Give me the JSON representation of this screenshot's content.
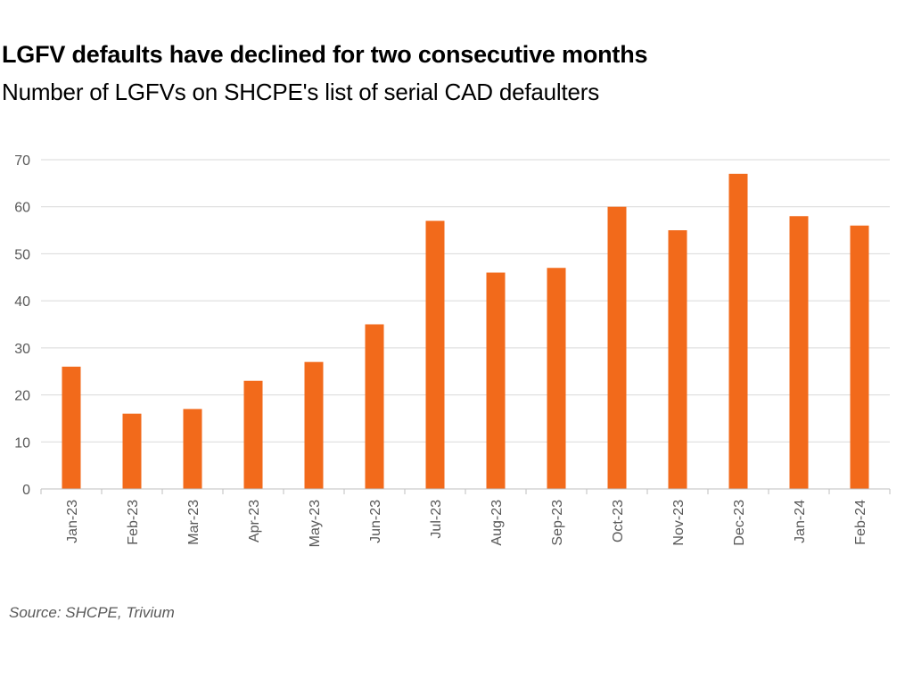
{
  "title": "LGFV defaults have declined for two consecutive months",
  "subtitle": "Number of LGFVs on SHCPE's list of serial CAD defaulters",
  "source": "Source: SHCPE, Trivium",
  "chart_data": {
    "type": "bar",
    "categories": [
      "Jan-23",
      "Feb-23",
      "Mar-23",
      "Apr-23",
      "May-23",
      "Jun-23",
      "Jul-23",
      "Aug-23",
      "Sep-23",
      "Oct-23",
      "Nov-23",
      "Dec-23",
      "Jan-24",
      "Feb-24"
    ],
    "values": [
      26,
      16,
      17,
      23,
      27,
      35,
      57,
      46,
      47,
      60,
      55,
      67,
      58,
      56
    ],
    "ylim": [
      0,
      70
    ],
    "yticks": [
      0,
      10,
      20,
      30,
      40,
      50,
      60,
      70
    ],
    "grid": true,
    "legend": "none",
    "bar_color": "#f26a1b",
    "grid_color": "#d9d9d9",
    "axis_color": "#bfbfbf"
  }
}
